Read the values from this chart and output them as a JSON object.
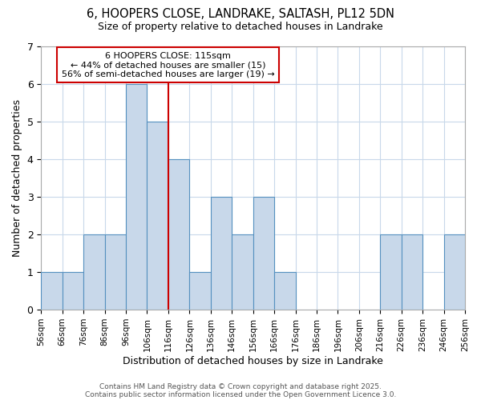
{
  "title_line1": "6, HOOPERS CLOSE, LANDRAKE, SALTASH, PL12 5DN",
  "title_line2": "Size of property relative to detached houses in Landrake",
  "xlabel": "Distribution of detached houses by size in Landrake",
  "ylabel": "Number of detached properties",
  "bin_edges": [
    56,
    66,
    76,
    86,
    96,
    106,
    116,
    126,
    136,
    146,
    156,
    166,
    176,
    186,
    196,
    206,
    216,
    226,
    236,
    246,
    256
  ],
  "counts": [
    1,
    1,
    2,
    2,
    6,
    5,
    4,
    1,
    3,
    2,
    3,
    1,
    0,
    0,
    0,
    0,
    2,
    2,
    0,
    2
  ],
  "bar_color": "#c8d8ea",
  "bar_edge_color": "#5590c0",
  "subject_line_x": 116,
  "subject_line_color": "#cc0000",
  "annotation_box_text": "6 HOOPERS CLOSE: 115sqm\n← 44% of detached houses are smaller (15)\n56% of semi-detached houses are larger (19) →",
  "annotation_box_color": "white",
  "annotation_box_edgecolor": "#cc0000",
  "ylim": [
    0,
    7
  ],
  "xlim": [
    56,
    256
  ],
  "yticks": [
    0,
    1,
    2,
    3,
    4,
    5,
    6,
    7
  ],
  "footer_line1": "Contains HM Land Registry data © Crown copyright and database right 2025.",
  "footer_line2": "Contains public sector information licensed under the Open Government Licence 3.0.",
  "bg_color": "#ffffff",
  "plot_bg_color": "#ffffff",
  "grid_color": "#c8d8ea"
}
